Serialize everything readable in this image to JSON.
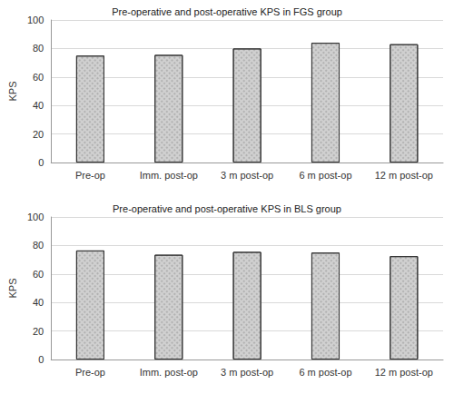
{
  "chart_data": [
    {
      "type": "bar",
      "title": "Pre-operative and post-operative KPS in FGS group",
      "y_label": "KPS",
      "categories": [
        "Pre-op",
        "Imm. post-op",
        "3 m post-op",
        "6 m post-op",
        "12 m post-op"
      ],
      "values": [
        75,
        75.5,
        80,
        84,
        83
      ],
      "color": "#d0d0d0",
      "ylim": [
        0,
        100
      ],
      "yticks": [
        0,
        20,
        40,
        60,
        80,
        100
      ],
      "grid": true
    },
    {
      "type": "bar",
      "title": "Pre-operative and post-operative KPS in BLS group",
      "y_label": "KPS",
      "categories": [
        "Pre-op",
        "Imm. post-op",
        "3 m post-op",
        "6 m post-op",
        "12 m post-op"
      ],
      "values": [
        76.5,
        73.5,
        75.5,
        75,
        72.5
      ],
      "color": "#d0d0d0",
      "ylim": [
        0,
        100
      ],
      "yticks": [
        0,
        20,
        40,
        60,
        80,
        100
      ],
      "grid": true
    }
  ]
}
